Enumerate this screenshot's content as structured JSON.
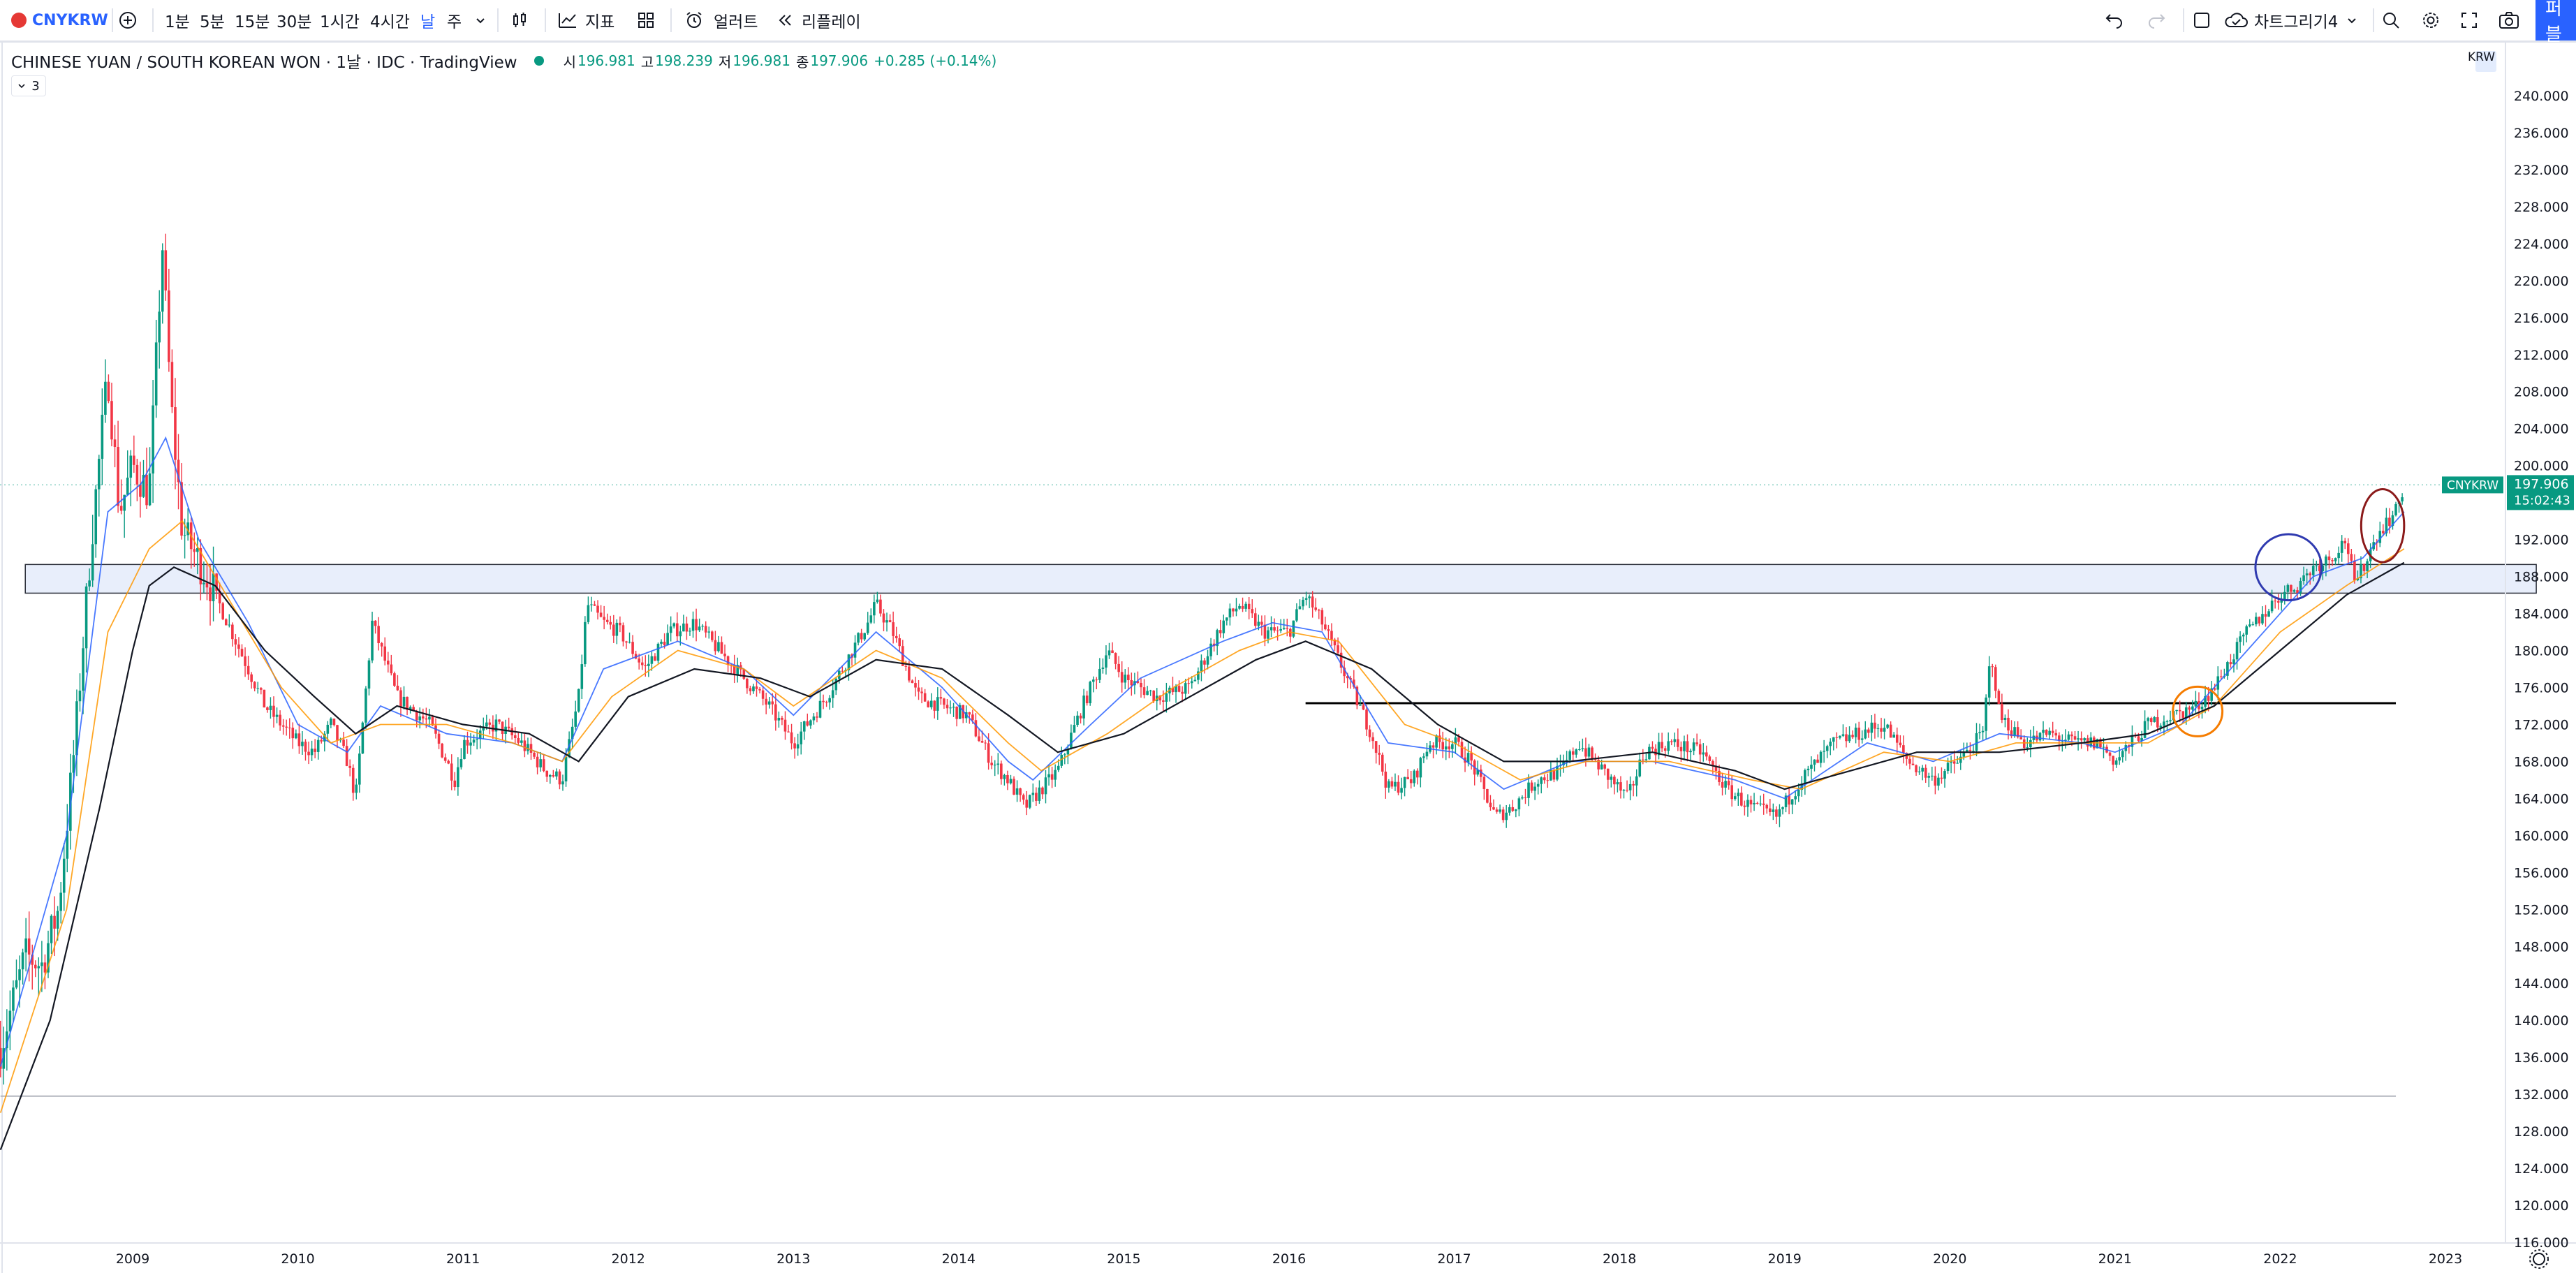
{
  "toolbar": {
    "symbol": "CNYKRW",
    "intervals": [
      "1분",
      "5분",
      "15분",
      "30분",
      "1시간",
      "4시간",
      "날",
      "주"
    ],
    "indicators_label": "지표",
    "alert_label": "얼러트",
    "replay_label": "리플레이",
    "layout_name": "차트그리기4",
    "publish_label": "퍼블"
  },
  "legend": {
    "title": "CHINESE YUAN / SOUTH KOREAN WON · 1날 · IDC · TradingView",
    "open_label": "시",
    "open": "196.981",
    "high_label": "고",
    "high": "198.239",
    "low_label": "저",
    "low": "196.981",
    "close_label": "종",
    "close": "197.906",
    "change": "+0.285 (+0.14%)",
    "indicator_count": "3"
  },
  "price_axis": {
    "currency": "KRW",
    "ticks": [
      "240.000",
      "236.000",
      "232.000",
      "228.000",
      "224.000",
      "220.000",
      "216.000",
      "212.000",
      "208.000",
      "204.000",
      "200.000",
      "196.000",
      "192.000",
      "188.000",
      "184.000",
      "180.000",
      "176.000",
      "172.000",
      "168.000",
      "164.000",
      "160.000",
      "156.000",
      "152.000",
      "148.000",
      "144.000",
      "140.000",
      "136.000",
      "132.000",
      "128.000",
      "124.000",
      "120.000",
      "116.000"
    ],
    "last_label": "CNYKRW",
    "last_price": "197.906",
    "countdown": "15:02:43"
  },
  "time_axis": {
    "ticks": [
      "2009",
      "2010",
      "2011",
      "2012",
      "2013",
      "2014",
      "2015",
      "2016",
      "2017",
      "2018",
      "2019",
      "2020",
      "2021",
      "2022",
      "2023"
    ]
  },
  "colors": {
    "up": "#089981",
    "down": "#f23645",
    "accent": "#2962ff",
    "ma_fast": "#2962ff",
    "ma_mid": "#ff9800",
    "ma_slow": "#131722",
    "zone_fill": "#e8eefb",
    "circle_blue": "#2f3ab0",
    "circle_orange": "#f57c00",
    "circle_red": "#8b1a1a"
  },
  "chart_data": {
    "type": "candlestick",
    "symbol": "CNYKRW",
    "x_range": [
      2008.2,
      2023.8
    ],
    "y_range": [
      115.5,
      241.5
    ],
    "grid": false,
    "series": [
      {
        "name": "CNYKRW",
        "style": "candles",
        "points": [
          [
            2008.2,
            137
          ],
          [
            2008.35,
            147
          ],
          [
            2008.45,
            146
          ],
          [
            2008.55,
            152
          ],
          [
            2008.65,
            170
          ],
          [
            2008.75,
            192
          ],
          [
            2008.85,
            210
          ],
          [
            2008.92,
            195
          ],
          [
            2009.0,
            200
          ],
          [
            2009.1,
            197
          ],
          [
            2009.18,
            224
          ],
          [
            2009.23,
            207
          ],
          [
            2009.3,
            193
          ],
          [
            2009.45,
            188
          ],
          [
            2009.6,
            182
          ],
          [
            2009.8,
            174
          ],
          [
            2010.0,
            170
          ],
          [
            2010.1,
            169
          ],
          [
            2010.2,
            172
          ],
          [
            2010.3,
            168
          ],
          [
            2010.35,
            164
          ],
          [
            2010.45,
            183
          ],
          [
            2010.6,
            175
          ],
          [
            2010.8,
            172
          ],
          [
            2010.95,
            166
          ],
          [
            2011.0,
            170
          ],
          [
            2011.2,
            172
          ],
          [
            2011.35,
            170
          ],
          [
            2011.5,
            167
          ],
          [
            2011.6,
            166
          ],
          [
            2011.7,
            175
          ],
          [
            2011.75,
            185
          ],
          [
            2011.85,
            183
          ],
          [
            2011.95,
            182
          ],
          [
            2012.1,
            178
          ],
          [
            2012.25,
            182
          ],
          [
            2012.4,
            183
          ],
          [
            2012.5,
            181
          ],
          [
            2012.7,
            177
          ],
          [
            2012.85,
            174
          ],
          [
            2013.0,
            170
          ],
          [
            2013.2,
            175
          ],
          [
            2013.45,
            183
          ],
          [
            2013.5,
            185
          ],
          [
            2013.6,
            182
          ],
          [
            2013.75,
            175
          ],
          [
            2013.9,
            174
          ],
          [
            2014.05,
            173
          ],
          [
            2014.2,
            168
          ],
          [
            2014.3,
            166
          ],
          [
            2014.4,
            163
          ],
          [
            2014.6,
            167
          ],
          [
            2014.75,
            174
          ],
          [
            2014.9,
            180
          ],
          [
            2015.0,
            177
          ],
          [
            2015.2,
            175
          ],
          [
            2015.4,
            176
          ],
          [
            2015.6,
            183
          ],
          [
            2015.7,
            185
          ],
          [
            2015.85,
            182
          ],
          [
            2016.0,
            182
          ],
          [
            2016.1,
            186
          ],
          [
            2016.2,
            183
          ],
          [
            2016.35,
            177
          ],
          [
            2016.5,
            171
          ],
          [
            2016.6,
            165
          ],
          [
            2016.75,
            166
          ],
          [
            2016.85,
            170
          ],
          [
            2017.0,
            170
          ],
          [
            2017.1,
            168
          ],
          [
            2017.25,
            162
          ],
          [
            2017.35,
            163
          ],
          [
            2017.5,
            166
          ],
          [
            2017.65,
            167
          ],
          [
            2017.75,
            170
          ],
          [
            2017.95,
            166
          ],
          [
            2018.05,
            164
          ],
          [
            2018.15,
            169
          ],
          [
            2018.3,
            170
          ],
          [
            2018.5,
            169
          ],
          [
            2018.65,
            165
          ],
          [
            2018.8,
            163
          ],
          [
            2018.95,
            162
          ],
          [
            2019.1,
            166
          ],
          [
            2019.3,
            170
          ],
          [
            2019.45,
            171
          ],
          [
            2019.6,
            172
          ],
          [
            2019.75,
            168
          ],
          [
            2019.9,
            166
          ],
          [
            2020.05,
            168
          ],
          [
            2020.2,
            171
          ],
          [
            2020.25,
            180
          ],
          [
            2020.3,
            173
          ],
          [
            2020.45,
            170
          ],
          [
            2020.6,
            171
          ],
          [
            2020.75,
            170
          ],
          [
            2020.9,
            170
          ],
          [
            2021.0,
            168
          ],
          [
            2021.1,
            170
          ],
          [
            2021.2,
            172
          ],
          [
            2021.35,
            173
          ],
          [
            2021.5,
            174
          ],
          [
            2021.6,
            176
          ],
          [
            2021.7,
            179
          ],
          [
            2021.8,
            182
          ],
          [
            2021.9,
            184
          ],
          [
            2022.0,
            186
          ],
          [
            2022.1,
            187
          ],
          [
            2022.2,
            189
          ],
          [
            2022.3,
            190
          ],
          [
            2022.4,
            192
          ],
          [
            2022.45,
            187
          ],
          [
            2022.5,
            189
          ],
          [
            2022.6,
            193
          ],
          [
            2022.7,
            195
          ],
          [
            2022.75,
            197.9
          ]
        ]
      },
      {
        "name": "MA fast",
        "style": "line",
        "color": "#2962ff",
        "points": [
          [
            2008.2,
            135
          ],
          [
            2008.6,
            160
          ],
          [
            2008.85,
            195
          ],
          [
            2009.05,
            198
          ],
          [
            2009.2,
            203
          ],
          [
            2009.4,
            192
          ],
          [
            2009.7,
            183
          ],
          [
            2010.0,
            172
          ],
          [
            2010.3,
            169
          ],
          [
            2010.5,
            174
          ],
          [
            2010.9,
            171
          ],
          [
            2011.3,
            170
          ],
          [
            2011.6,
            168
          ],
          [
            2011.85,
            178
          ],
          [
            2012.3,
            181
          ],
          [
            2012.7,
            178
          ],
          [
            2013.0,
            173
          ],
          [
            2013.5,
            182
          ],
          [
            2013.9,
            176
          ],
          [
            2014.3,
            168
          ],
          [
            2014.45,
            166
          ],
          [
            2014.8,
            172
          ],
          [
            2015.1,
            177
          ],
          [
            2015.6,
            181
          ],
          [
            2015.9,
            183
          ],
          [
            2016.2,
            182
          ],
          [
            2016.6,
            170
          ],
          [
            2017.0,
            169
          ],
          [
            2017.3,
            165
          ],
          [
            2017.7,
            168
          ],
          [
            2018.2,
            168
          ],
          [
            2018.7,
            166
          ],
          [
            2019.0,
            164
          ],
          [
            2019.5,
            170
          ],
          [
            2019.9,
            168
          ],
          [
            2020.3,
            171
          ],
          [
            2020.8,
            170
          ],
          [
            2021.0,
            169
          ],
          [
            2021.4,
            172
          ],
          [
            2021.8,
            180
          ],
          [
            2022.2,
            188
          ],
          [
            2022.5,
            190
          ],
          [
            2022.75,
            195
          ]
        ]
      },
      {
        "name": "MA mid",
        "style": "line",
        "color": "#ff9800",
        "points": [
          [
            2008.2,
            130
          ],
          [
            2008.6,
            152
          ],
          [
            2008.85,
            182
          ],
          [
            2009.1,
            191
          ],
          [
            2009.3,
            194
          ],
          [
            2009.6,
            185
          ],
          [
            2009.9,
            176
          ],
          [
            2010.2,
            170
          ],
          [
            2010.5,
            172
          ],
          [
            2010.9,
            172
          ],
          [
            2011.3,
            170
          ],
          [
            2011.6,
            168
          ],
          [
            2011.9,
            175
          ],
          [
            2012.3,
            180
          ],
          [
            2012.7,
            178
          ],
          [
            2013.0,
            174
          ],
          [
            2013.5,
            180
          ],
          [
            2013.9,
            177
          ],
          [
            2014.3,
            170
          ],
          [
            2014.5,
            167
          ],
          [
            2014.9,
            171
          ],
          [
            2015.3,
            176
          ],
          [
            2015.7,
            180
          ],
          [
            2016.0,
            182
          ],
          [
            2016.3,
            181
          ],
          [
            2016.7,
            172
          ],
          [
            2017.0,
            170
          ],
          [
            2017.4,
            166
          ],
          [
            2017.8,
            168
          ],
          [
            2018.3,
            168
          ],
          [
            2018.8,
            166
          ],
          [
            2019.1,
            165
          ],
          [
            2019.6,
            169
          ],
          [
            2020.0,
            168
          ],
          [
            2020.4,
            170
          ],
          [
            2020.9,
            170
          ],
          [
            2021.2,
            170
          ],
          [
            2021.6,
            174
          ],
          [
            2022.0,
            182
          ],
          [
            2022.4,
            187
          ],
          [
            2022.75,
            191
          ]
        ]
      },
      {
        "name": "MA slow",
        "style": "line",
        "color": "#131722",
        "points": [
          [
            2008.2,
            126
          ],
          [
            2008.5,
            140
          ],
          [
            2008.8,
            163
          ],
          [
            2009.0,
            180
          ],
          [
            2009.1,
            187
          ],
          [
            2009.25,
            189
          ],
          [
            2009.5,
            187
          ],
          [
            2009.8,
            180
          ],
          [
            2010.1,
            175
          ],
          [
            2010.35,
            171
          ],
          [
            2010.6,
            174
          ],
          [
            2011.0,
            172
          ],
          [
            2011.4,
            171
          ],
          [
            2011.7,
            168
          ],
          [
            2012.0,
            175
          ],
          [
            2012.4,
            178
          ],
          [
            2012.8,
            177
          ],
          [
            2013.1,
            175
          ],
          [
            2013.5,
            179
          ],
          [
            2013.9,
            178
          ],
          [
            2014.3,
            173
          ],
          [
            2014.6,
            169
          ],
          [
            2015.0,
            171
          ],
          [
            2015.4,
            175
          ],
          [
            2015.8,
            179
          ],
          [
            2016.1,
            181
          ],
          [
            2016.5,
            178
          ],
          [
            2016.9,
            172
          ],
          [
            2017.3,
            168
          ],
          [
            2017.7,
            168
          ],
          [
            2018.2,
            169
          ],
          [
            2018.7,
            167
          ],
          [
            2019.0,
            165
          ],
          [
            2019.4,
            167
          ],
          [
            2019.8,
            169
          ],
          [
            2020.3,
            169
          ],
          [
            2020.8,
            170
          ],
          [
            2021.2,
            171
          ],
          [
            2021.6,
            174
          ],
          [
            2022.0,
            180
          ],
          [
            2022.4,
            186
          ],
          [
            2022.75,
            189.5
          ]
        ]
      }
    ],
    "annotations": [
      {
        "type": "zone",
        "y_range": [
          186.2,
          189.3
        ],
        "x_range": [
          2008.35,
          2023.55
        ]
      },
      {
        "type": "hline",
        "y": 174.3,
        "x_range": [
          2016.1,
          2022.7
        ]
      },
      {
        "type": "hline",
        "y": 131.8,
        "x_range": [
          2008.2,
          2022.7
        ]
      },
      {
        "type": "circle",
        "color": "blue",
        "cx": 2022.05,
        "cy": 189,
        "r": 0.2
      },
      {
        "type": "circle",
        "color": "orange",
        "cx": 2021.5,
        "cy": 173.4,
        "r": 0.15
      },
      {
        "type": "circle",
        "color": "red",
        "cx": 2022.62,
        "cy": 193.5,
        "r": 0.13
      }
    ]
  }
}
